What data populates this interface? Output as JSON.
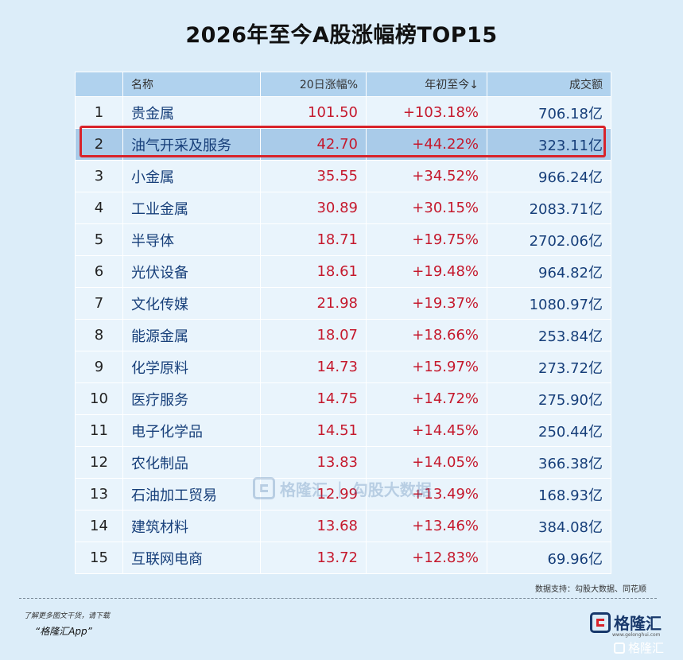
{
  "title": "2026年至今A股涨幅榜TOP15",
  "table": {
    "headers": [
      "",
      "名称",
      "20日涨幅%",
      "年初至今↓",
      "成交额"
    ],
    "rows": [
      {
        "rank": "1",
        "name": "贵金属",
        "change20d": "101.50",
        "ytd": "+103.18%",
        "volume": "706.18亿"
      },
      {
        "rank": "2",
        "name": "油气开采及服务",
        "change20d": "42.70",
        "ytd": "+44.22%",
        "volume": "323.11亿"
      },
      {
        "rank": "3",
        "name": "小金属",
        "change20d": "35.55",
        "ytd": "+34.52%",
        "volume": "966.24亿"
      },
      {
        "rank": "4",
        "name": "工业金属",
        "change20d": "30.89",
        "ytd": "+30.15%",
        "volume": "2083.71亿"
      },
      {
        "rank": "5",
        "name": "半导体",
        "change20d": "18.71",
        "ytd": "+19.75%",
        "volume": "2702.06亿"
      },
      {
        "rank": "6",
        "name": "光伏设备",
        "change20d": "18.61",
        "ytd": "+19.48%",
        "volume": "964.82亿"
      },
      {
        "rank": "7",
        "name": "文化传媒",
        "change20d": "21.98",
        "ytd": "+19.37%",
        "volume": "1080.97亿"
      },
      {
        "rank": "8",
        "name": "能源金属",
        "change20d": "18.07",
        "ytd": "+18.66%",
        "volume": "253.84亿"
      },
      {
        "rank": "9",
        "name": "化学原料",
        "change20d": "14.73",
        "ytd": "+15.97%",
        "volume": "273.72亿"
      },
      {
        "rank": "10",
        "name": "医疗服务",
        "change20d": "14.75",
        "ytd": "+14.72%",
        "volume": "275.90亿"
      },
      {
        "rank": "11",
        "name": "电子化学品",
        "change20d": "14.51",
        "ytd": "+14.45%",
        "volume": "250.44亿"
      },
      {
        "rank": "12",
        "name": "农化制品",
        "change20d": "13.83",
        "ytd": "+14.05%",
        "volume": "366.38亿"
      },
      {
        "rank": "13",
        "name": "石油加工贸易",
        "change20d": "12.99",
        "ytd": "+13.49%",
        "volume": "168.93亿"
      },
      {
        "rank": "14",
        "name": "建筑材料",
        "change20d": "13.68",
        "ytd": "+13.46%",
        "volume": "384.08亿"
      },
      {
        "rank": "15",
        "name": "互联网电商",
        "change20d": "13.72",
        "ytd": "+12.83%",
        "volume": "69.96亿"
      }
    ],
    "highlighted_rank": "2"
  },
  "watermark": {
    "brand": "格隆汇",
    "product": "勾股大数据",
    "url": "www.gogudata.com"
  },
  "source": "数据支持：勾股大数据、同花顺",
  "footer": {
    "note": "了解更多图文干货，请下载",
    "app": "“格隆汇App”",
    "brand": "格隆汇",
    "brand_url": "www.gelonghui.com",
    "social_brand": "格隆汇"
  },
  "colors": {
    "background": "#dcedf9",
    "header": "#b0d2ee",
    "selected_row": "#a9cbe9",
    "highlight_border": "#d8232a",
    "positive": "#c5192d",
    "name_text": "#173f7a"
  },
  "icons": {
    "brand_logo": "gelonghui-logo-icon",
    "social_logo": "weibo-style-icon"
  }
}
